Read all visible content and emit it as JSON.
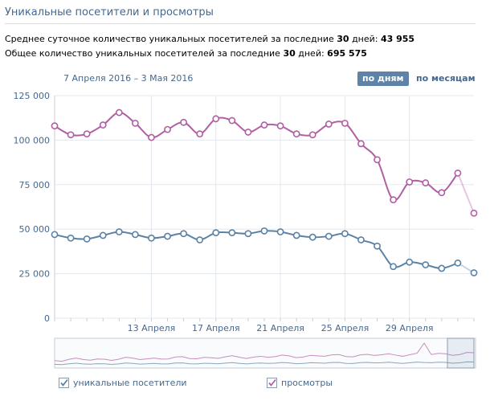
{
  "title": "Уникальные посетители и просмотры",
  "summary": {
    "daily_text": "Среднее суточное количество уникальных посетителей за последние",
    "daily_days": "30",
    "daily_days_suffix": "дней:",
    "daily_value": "43 955",
    "total_text": "Общее количество уникальных посетителей за последние",
    "total_days": "30",
    "total_days_suffix": "дней:",
    "total_value": "695 575"
  },
  "date_range": "7 Апреля 2016 – 3 Мая 2016",
  "buttons": {
    "by_day": "по дням",
    "by_month": "по месяцам"
  },
  "legend": {
    "visitors": "уникальные посетители",
    "views": "просмотры"
  },
  "colors": {
    "visitors": "#5a82a6",
    "views": "#b15fa3",
    "grid": "#e3e8ee",
    "axis_text": "#45688e"
  },
  "chart_data": {
    "type": "line",
    "x_start_index": 0,
    "ylim": [
      0,
      125000
    ],
    "yticks": [
      "125 000",
      "100 000",
      "75 000",
      "50 000",
      "25 000",
      "0"
    ],
    "ytick_values": [
      125000,
      100000,
      75000,
      50000,
      25000,
      0
    ],
    "xticks": [
      {
        "label": "13 Апреля",
        "index": 6
      },
      {
        "label": "17 Апреля",
        "index": 10
      },
      {
        "label": "21 Апреля",
        "index": 14
      },
      {
        "label": "25 Апреля",
        "index": 18
      },
      {
        "label": "29 Апреля",
        "index": 22
      }
    ],
    "x_dates": [
      "7 Апреля",
      "8 Апреля",
      "9 Апреля",
      "10 Апреля",
      "11 Апреля",
      "12 Апреля",
      "13 Апреля",
      "14 Апреля",
      "15 Апреля",
      "16 Апреля",
      "17 Апреля",
      "18 Апреля",
      "19 Апреля",
      "20 Апреля",
      "21 Апреля",
      "22 Апреля",
      "23 Апреля",
      "24 Апреля",
      "25 Апреля",
      "26 Апреля",
      "27 Апреля",
      "28 Апреля",
      "29 Апреля",
      "30 Апреля",
      "1 Мая",
      "2 Мая",
      "3 Мая"
    ],
    "series": [
      {
        "name": "просмотры",
        "values": [
          108000,
          103000,
          103500,
          108500,
          115500,
          109500,
          101500,
          106000,
          110000,
          103500,
          112000,
          111000,
          104500,
          108500,
          108000,
          103500,
          103000,
          109000,
          109500,
          98000,
          89000,
          66500,
          76500,
          76000,
          70500,
          81500,
          59000
        ]
      },
      {
        "name": "уникальные посетители",
        "values": [
          47000,
          45000,
          44500,
          46500,
          48500,
          47000,
          45000,
          46000,
          47500,
          44000,
          48000,
          48000,
          47500,
          49000,
          48500,
          46500,
          45500,
          46000,
          47500,
          44000,
          40500,
          29000,
          31500,
          30000,
          28000,
          31000,
          25500
        ]
      }
    ]
  }
}
